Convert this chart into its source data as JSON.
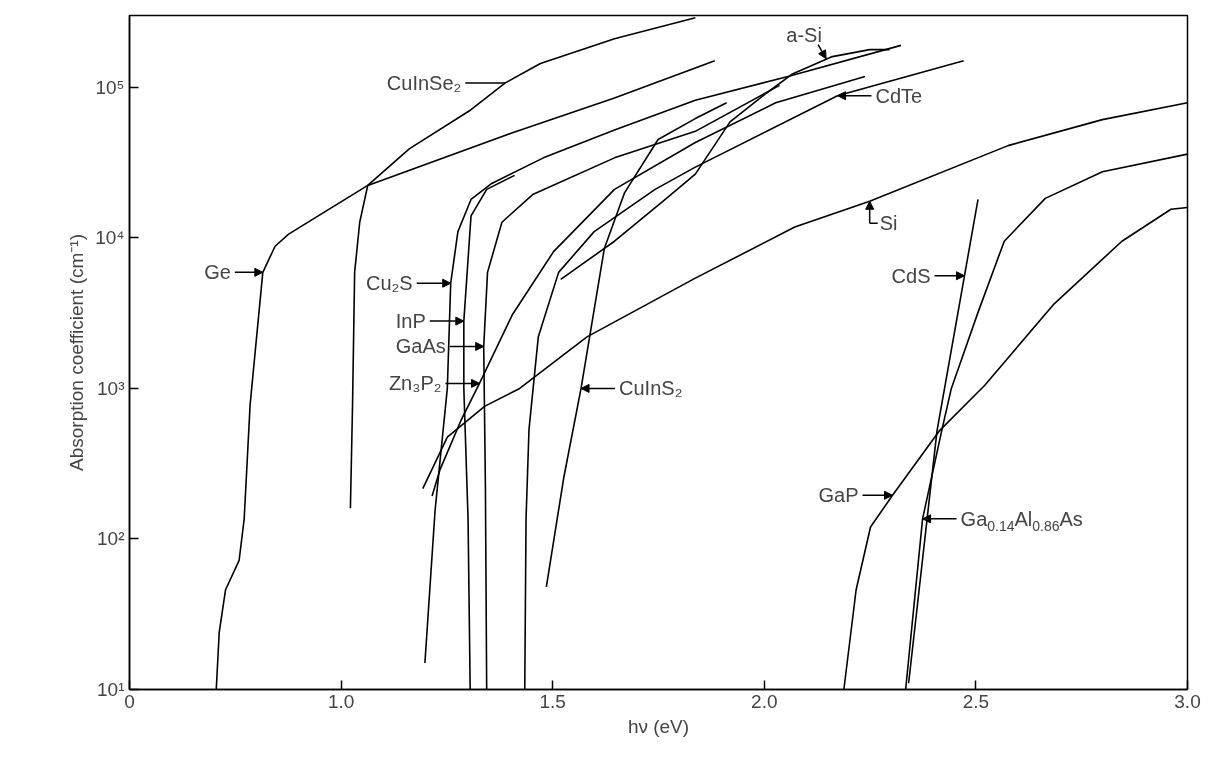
{
  "chart_data": {
    "type": "line",
    "xlabel": "hν (eV)",
    "ylabel": "Absorption coefficient (cm⁻¹)",
    "log": "y",
    "grid": false,
    "marker": "none",
    "line_style": "solid",
    "xlim": [
      0.5,
      3.0
    ],
    "xticks": [
      {
        "value": 0.5,
        "label": "0"
      },
      {
        "value": 1,
        "label": "1.0"
      },
      1.5,
      {
        "value": 2,
        "label": "2.0"
      },
      2.5,
      {
        "value": 3,
        "label": "3.0"
      }
    ],
    "ylim": [
      10,
      300000
    ],
    "yticks": [
      {
        "value": 10,
        "label": "10¹"
      },
      {
        "value": 100,
        "label": "10²"
      },
      {
        "value": 1000,
        "label": "10³"
      },
      {
        "value": 10000,
        "label": "10⁴"
      },
      {
        "value": 100000,
        "label": "10⁵"
      }
    ],
    "series": [
      {
        "color": "#000000",
        "x": [
          0.705,
          0.712,
          0.727,
          0.759,
          0.771,
          0.785,
          0.815,
          0.844,
          0.876,
          1.063,
          1.405,
          1.646,
          1.883
        ],
        "values": [
          10,
          24,
          46,
          72,
          136,
          780,
          5900,
          8800,
          10600,
          22300,
          50000,
          85000,
          150000
        ]
      },
      {
        "color": "#000000",
        "x": [
          1.022,
          1.027,
          1.032,
          1.044,
          1.063,
          1.161,
          1.307,
          1.388,
          1.471,
          1.646,
          1.837
        ],
        "values": [
          160,
          770,
          5900,
          12700,
          22300,
          39000,
          71000,
          107000,
          144000,
          210000,
          290000
        ]
      },
      {
        "color": "#000000",
        "x": [
          1.198,
          1.222,
          1.251,
          1.259,
          1.276,
          1.307,
          1.356,
          1.478,
          1.646,
          1.837,
          2.056,
          2.323
        ],
        "values": [
          15,
          154,
          1000,
          5000,
          11000,
          18000,
          23000,
          34000,
          52000,
          82000,
          118000,
          190000
        ]
      },
      {
        "color": "#000000",
        "x": [
          1.305,
          1.3,
          1.29,
          1.29,
          1.307,
          1.344,
          1.41
        ],
        "values": [
          10,
          136,
          1000,
          2800,
          14000,
          21000,
          26000
        ]
      },
      {
        "color": "#000000",
        "x": [
          1.344,
          1.341,
          1.337,
          1.346,
          1.38,
          1.454,
          1.646,
          1.837,
          2.036
        ],
        "values": [
          10,
          224,
          1900,
          5900,
          12700,
          19500,
          34000,
          51000,
          103000
        ]
      },
      {
        "color": "#000000",
        "x": [
          1.215,
          1.234,
          1.283,
          1.327,
          1.405,
          1.502,
          1.646,
          1.837,
          2.027,
          2.238
        ],
        "values": [
          193,
          290,
          610,
          1080,
          3100,
          8100,
          21000,
          43000,
          79000,
          118000
        ]
      },
      {
        "color": "#000000",
        "x": [
          1.485,
          1.526,
          1.567,
          1.622,
          1.67,
          1.749,
          1.837,
          1.911
        ],
        "values": [
          48,
          254,
          1000,
          8500,
          20000,
          45000,
          62000,
          79000
        ]
      },
      {
        "color": "#000000",
        "x": [
          1.519,
          1.646,
          1.766,
          1.837,
          1.919,
          2.004,
          2.065,
          2.161,
          2.249,
          2.296
        ],
        "values": [
          5300,
          9500,
          18000,
          26500,
          59000,
          91000,
          122000,
          160000,
          178000,
          178000
        ]
      },
      {
        "color": "#000000",
        "x": [
          1.434,
          1.437,
          1.444,
          1.466,
          1.514,
          1.598,
          1.742,
          1.837,
          2.173,
          2.471
        ],
        "values": [
          10,
          136,
          535,
          2200,
          5900,
          11000,
          21000,
          29500,
          88000,
          150000
        ]
      },
      {
        "color": "#000000",
        "x": [
          1.193,
          1.251,
          1.339,
          1.422,
          1.581,
          1.837,
          2.072,
          2.249,
          2.576,
          2.799,
          3.0
        ],
        "values": [
          216,
          475,
          760,
          1000,
          2200,
          5400,
          11800,
          17500,
          41000,
          61000,
          79000
        ]
      },
      {
        "color": "#000000",
        "x": [
          2.341,
          2.408,
          2.473,
          2.505
        ],
        "values": [
          11,
          520,
          5600,
          18000
        ]
      },
      {
        "color": "#000000",
        "x": [
          2.188,
          2.217,
          2.251,
          2.303,
          2.413,
          2.521,
          2.683,
          2.845,
          2.961,
          3.0
        ],
        "values": [
          10,
          46,
          120,
          195,
          520,
          1050,
          3600,
          9500,
          15500,
          15900
        ]
      },
      {
        "color": "#000000",
        "x": [
          2.334,
          2.374,
          2.419,
          2.442,
          2.505,
          2.567,
          2.664,
          2.799,
          3.0
        ],
        "values": [
          10,
          136,
          520,
          1000,
          3200,
          9500,
          18300,
          27500,
          36000
        ]
      }
    ],
    "annotations": [
      {
        "text": "Ge",
        "x": 0.815,
        "y": 5900
      },
      {
        "text": "CuInSe₂",
        "x": 1.388,
        "y": 107000
      },
      {
        "text": "Cu₂S",
        "x": 1.259,
        "y": 5000
      },
      {
        "text": "InP",
        "x": 1.29,
        "y": 2800
      },
      {
        "text": "GaAs",
        "x": 1.337,
        "y": 1900
      },
      {
        "text": "Zn₃P₂",
        "x": 1.327,
        "y": 1080
      },
      {
        "text": "CuInS₂",
        "x": 1.567,
        "y": 1000
      },
      {
        "text": "a-Si",
        "x": 2.146,
        "y": 155000
      },
      {
        "text": "CdTe",
        "x": 2.173,
        "y": 88000
      },
      {
        "text": "Si",
        "x": 2.249,
        "y": 17500
      },
      {
        "text": "CdS",
        "x": 2.473,
        "y": 5600
      },
      {
        "text": "GaP",
        "x": 2.303,
        "y": 195
      },
      {
        "text": "Ga$_{0.14}$Al$_{0.86}$As",
        "x": 2.374,
        "y": 136
      }
    ]
  }
}
